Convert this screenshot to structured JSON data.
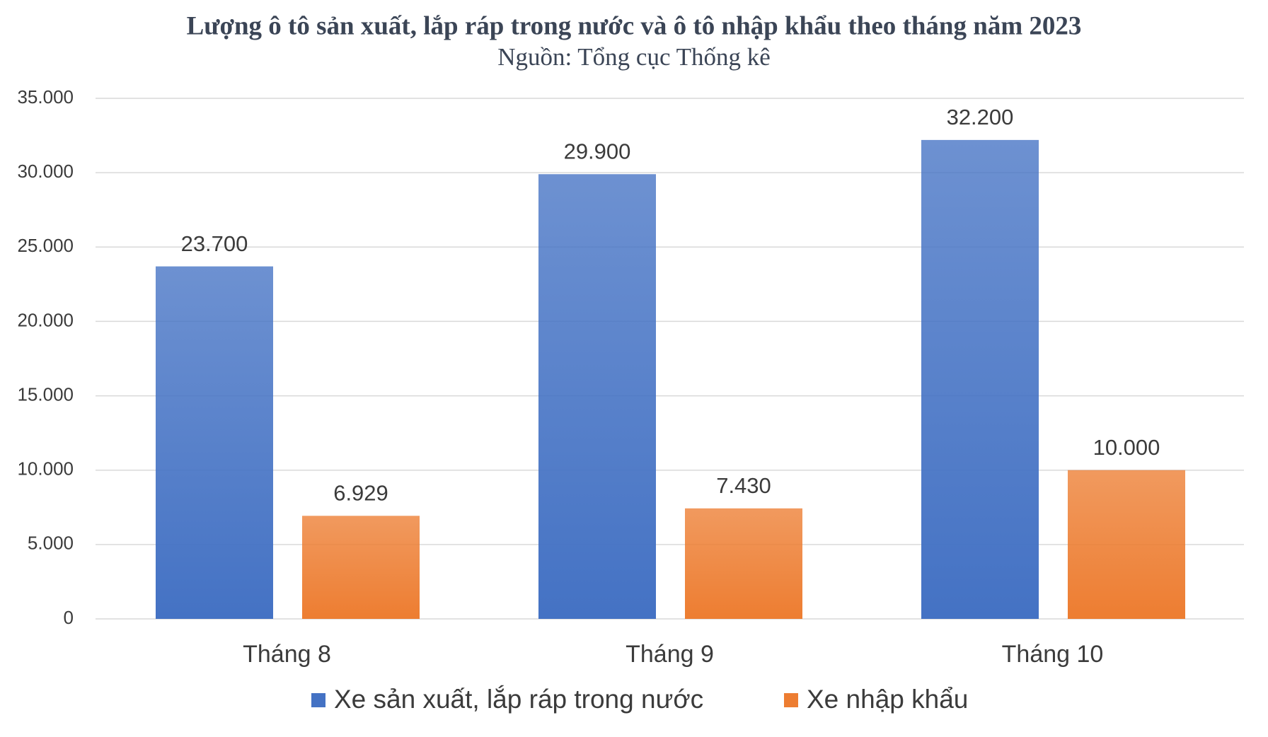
{
  "chart_data": {
    "type": "bar",
    "title": "Lượng ô tô sản xuất, lắp ráp trong nước và ô tô nhập khẩu theo tháng năm 2023",
    "subtitle": "Nguồn: Tổng cục Thống kê",
    "categories": [
      "Tháng 8",
      "Tháng 9",
      "Tháng 10"
    ],
    "series": [
      {
        "name": "Xe sản xuất, lắp ráp trong nước",
        "color": "#4472c4",
        "values": [
          23700,
          29900,
          32200
        ],
        "value_labels": [
          "23.700",
          "29.900",
          "32.200"
        ]
      },
      {
        "name": "Xe nhập khẩu",
        "color": "#ed7d31",
        "values": [
          6929,
          7430,
          10000
        ],
        "value_labels": [
          "6.929",
          "7.430",
          "10.000"
        ]
      }
    ],
    "ylim": [
      0,
      35000
    ],
    "yticks": [
      0,
      {
        "value": 5000,
        "label": "5.000"
      },
      {
        "value": 10000,
        "label": "10.000"
      },
      {
        "value": 15000,
        "label": "15.000"
      },
      {
        "value": 20000,
        "label": "20.000"
      },
      {
        "value": 25000,
        "label": "25.000"
      },
      {
        "value": 30000,
        "label": "30.000"
      },
      {
        "value": 35000,
        "label": "35.000"
      }
    ],
    "grid": true,
    "legend": "bottom"
  }
}
